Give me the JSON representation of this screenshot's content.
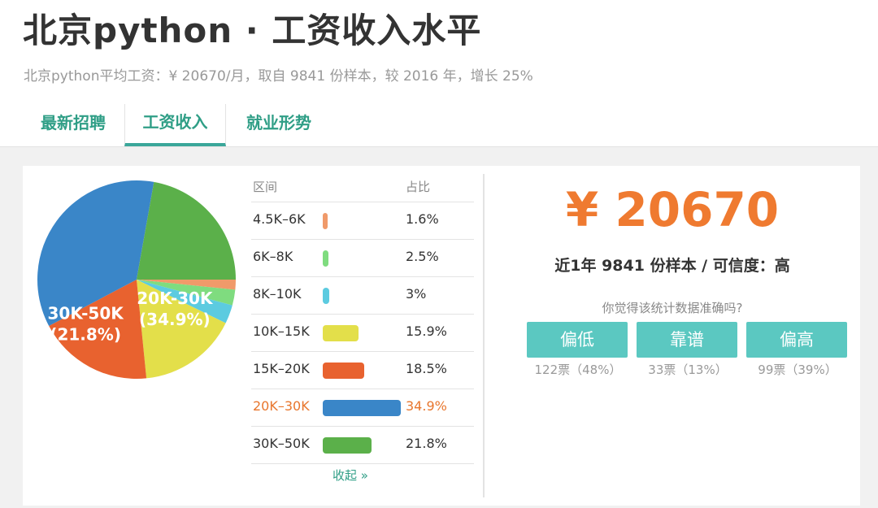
{
  "header": {
    "title": "北京python · 工资收入水平",
    "subtitle": "北京python平均工资：¥ 20670/月，取自 9841 份样本，较 2016 年，增长 25%"
  },
  "tabs": [
    {
      "label": "最新招聘",
      "active": false
    },
    {
      "label": "工资收入",
      "active": true
    },
    {
      "label": "就业形势",
      "active": false
    }
  ],
  "colors": {
    "accent": "#2f9e86",
    "tab_underline": "#3aa79a",
    "salary": "#ef7a30",
    "button": "#5bc8c1"
  },
  "chart_data": {
    "type": "pie",
    "slices": [
      {
        "label": "4.5K-6K",
        "value": 1.6,
        "color": "#f09a6a"
      },
      {
        "label": "6K-8K",
        "value": 2.5,
        "color": "#7fdc7f"
      },
      {
        "label": "8K-10K",
        "value": 3,
        "color": "#5ccbe0"
      },
      {
        "label": "10K-15K",
        "value": 15.9,
        "color": "#e3df4a"
      },
      {
        "label": "15K-20K",
        "value": 18.5,
        "color": "#e8622f"
      },
      {
        "label": "20K-30K",
        "value": 34.9,
        "color": "#3a86c8"
      },
      {
        "label": "30K-50K",
        "value": 21.8,
        "color": "#5bb04a"
      }
    ],
    "slice_labels": [
      {
        "slice": "20K-30K",
        "line1": "20K-30K",
        "line2": "(34.9%)"
      },
      {
        "slice": "30K-50K",
        "line1": "30K-50K",
        "line2": "(21.8%)"
      }
    ]
  },
  "table": {
    "col_range": "区间",
    "col_ratio": "占比",
    "rows": [
      {
        "range": "4.5K–6K",
        "pct": "1.6%",
        "highlight": false
      },
      {
        "range": "6K–8K",
        "pct": "2.5%",
        "highlight": false
      },
      {
        "range": "8K–10K",
        "pct": "3%",
        "highlight": false
      },
      {
        "range": "10K–15K",
        "pct": "15.9%",
        "highlight": false
      },
      {
        "range": "15K–20K",
        "pct": "18.5%",
        "highlight": false
      },
      {
        "range": "20K–30K",
        "pct": "34.9%",
        "highlight": true
      },
      {
        "range": "30K–50K",
        "pct": "21.8%",
        "highlight": false
      }
    ],
    "collapse_label": "收起 »"
  },
  "summary": {
    "avg_salary": "¥ 20670",
    "sample_info": "近1年 9841 份样本 / 可信度：高",
    "question": "你觉得该统计数据准确吗?"
  },
  "votes": [
    {
      "label": "偏低",
      "count": "122票（48%）"
    },
    {
      "label": "靠谱",
      "count": "33票（13%）"
    },
    {
      "label": "偏高",
      "count": "99票（39%）"
    }
  ]
}
